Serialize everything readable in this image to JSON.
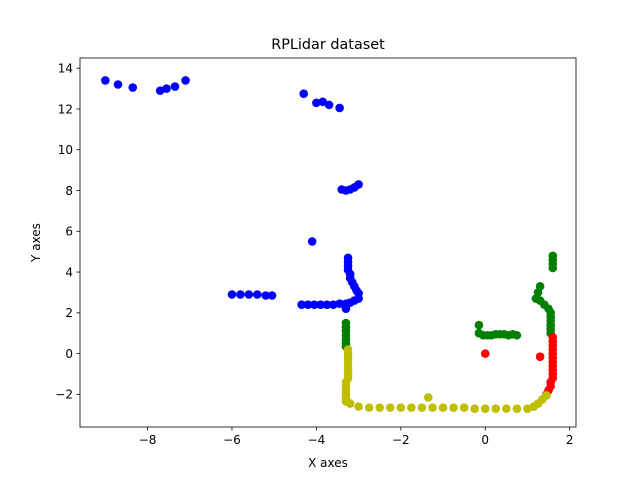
{
  "chart_data": {
    "type": "scatter",
    "title": "RPLidar dataset",
    "xlabel": "X axes",
    "ylabel": "Y axes",
    "xlim": [
      -9.6,
      2.15
    ],
    "ylim": [
      -3.6,
      14.5
    ],
    "xticks": [
      -8,
      -6,
      -4,
      -2,
      0,
      2
    ],
    "yticks": [
      -2,
      0,
      2,
      4,
      6,
      8,
      10,
      12,
      14
    ],
    "grid": false,
    "series": [
      {
        "color": "#0000ff",
        "points": [
          [
            -9.0,
            13.4
          ],
          [
            -8.7,
            13.2
          ],
          [
            -8.35,
            13.05
          ],
          [
            -7.7,
            12.9
          ],
          [
            -7.55,
            13.0
          ],
          [
            -7.35,
            13.1
          ],
          [
            -7.1,
            13.4
          ],
          [
            -4.3,
            12.75
          ],
          [
            -4.0,
            12.3
          ],
          [
            -3.85,
            12.35
          ],
          [
            -3.7,
            12.2
          ],
          [
            -3.45,
            12.05
          ],
          [
            -3.4,
            8.05
          ],
          [
            -3.3,
            8.0
          ],
          [
            -3.2,
            8.05
          ],
          [
            -3.1,
            8.15
          ],
          [
            -3.0,
            8.3
          ],
          [
            -4.1,
            5.5
          ],
          [
            -6.0,
            2.9
          ],
          [
            -5.8,
            2.9
          ],
          [
            -5.6,
            2.9
          ],
          [
            -5.4,
            2.9
          ],
          [
            -5.2,
            2.85
          ],
          [
            -5.05,
            2.85
          ],
          [
            -4.35,
            2.4
          ],
          [
            -4.2,
            2.4
          ],
          [
            -4.05,
            2.4
          ],
          [
            -3.9,
            2.4
          ],
          [
            -3.75,
            2.4
          ],
          [
            -3.6,
            2.4
          ],
          [
            -3.45,
            2.45
          ],
          [
            -3.3,
            2.45
          ],
          [
            -3.2,
            2.5
          ],
          [
            -3.1,
            2.6
          ],
          [
            -3.0,
            2.7
          ],
          [
            -3.25,
            4.7
          ],
          [
            -3.25,
            4.5
          ],
          [
            -3.25,
            4.3
          ],
          [
            -3.25,
            4.1
          ],
          [
            -3.2,
            3.9
          ],
          [
            -3.2,
            3.7
          ],
          [
            -3.15,
            3.5
          ],
          [
            -3.1,
            3.3
          ],
          [
            -3.05,
            3.1
          ],
          [
            -3.0,
            2.95
          ],
          [
            -3.3,
            2.2
          ]
        ]
      },
      {
        "color": "#008000",
        "points": [
          [
            -3.3,
            1.5
          ],
          [
            -3.3,
            1.3
          ],
          [
            -3.3,
            1.1
          ],
          [
            -3.3,
            0.9
          ],
          [
            -3.3,
            0.7
          ],
          [
            -3.3,
            0.5
          ],
          [
            -3.3,
            0.35
          ],
          [
            -0.15,
            1.4
          ],
          [
            -0.15,
            1.0
          ],
          [
            -0.05,
            0.9
          ],
          [
            0.05,
            0.9
          ],
          [
            0.15,
            0.9
          ],
          [
            0.25,
            0.95
          ],
          [
            0.35,
            0.95
          ],
          [
            0.45,
            0.95
          ],
          [
            0.55,
            0.9
          ],
          [
            0.65,
            0.95
          ],
          [
            0.75,
            0.9
          ],
          [
            1.3,
            3.3
          ],
          [
            1.25,
            3.0
          ],
          [
            1.2,
            2.7
          ],
          [
            1.3,
            2.6
          ],
          [
            1.4,
            2.4
          ],
          [
            1.5,
            2.2
          ],
          [
            1.55,
            2.0
          ],
          [
            1.55,
            1.8
          ],
          [
            1.55,
            1.6
          ],
          [
            1.55,
            1.4
          ],
          [
            1.55,
            1.2
          ],
          [
            1.55,
            1.0
          ],
          [
            1.6,
            4.8
          ],
          [
            1.6,
            4.6
          ],
          [
            1.6,
            4.4
          ],
          [
            1.6,
            4.2
          ]
        ]
      },
      {
        "color": "#ff0000",
        "points": [
          [
            0.0,
            0.0
          ],
          [
            1.3,
            -0.15
          ],
          [
            1.6,
            0.8
          ],
          [
            1.6,
            0.6
          ],
          [
            1.6,
            0.4
          ],
          [
            1.6,
            0.2
          ],
          [
            1.6,
            0.0
          ],
          [
            1.6,
            -0.2
          ],
          [
            1.6,
            -0.4
          ],
          [
            1.6,
            -0.6
          ],
          [
            1.6,
            -0.8
          ],
          [
            1.6,
            -1.0
          ],
          [
            1.6,
            -1.2
          ],
          [
            1.55,
            -1.4
          ],
          [
            1.55,
            -1.6
          ],
          [
            1.5,
            -1.8
          ],
          [
            1.45,
            -2.0
          ]
        ]
      },
      {
        "color": "#bfbf00",
        "points": [
          [
            -3.25,
            0.2
          ],
          [
            -3.25,
            0.0
          ],
          [
            -3.25,
            -0.2
          ],
          [
            -3.25,
            -0.4
          ],
          [
            -3.25,
            -0.6
          ],
          [
            -3.25,
            -0.8
          ],
          [
            -3.25,
            -1.0
          ],
          [
            -3.25,
            -1.2
          ],
          [
            -3.3,
            -1.4
          ],
          [
            -3.3,
            -1.6
          ],
          [
            -3.3,
            -1.8
          ],
          [
            -3.3,
            -2.0
          ],
          [
            -3.3,
            -2.2
          ],
          [
            -3.3,
            -2.35
          ],
          [
            -3.2,
            -2.45
          ],
          [
            -3.0,
            -2.6
          ],
          [
            -2.75,
            -2.65
          ],
          [
            -2.5,
            -2.65
          ],
          [
            -2.25,
            -2.65
          ],
          [
            -2.0,
            -2.65
          ],
          [
            -1.75,
            -2.65
          ],
          [
            -1.5,
            -2.65
          ],
          [
            -1.35,
            -2.15
          ],
          [
            -1.25,
            -2.65
          ],
          [
            -1.0,
            -2.65
          ],
          [
            -0.75,
            -2.65
          ],
          [
            -0.5,
            -2.65
          ],
          [
            -0.25,
            -2.7
          ],
          [
            0.0,
            -2.7
          ],
          [
            0.25,
            -2.7
          ],
          [
            0.5,
            -2.7
          ],
          [
            0.75,
            -2.7
          ],
          [
            1.0,
            -2.7
          ],
          [
            1.15,
            -2.6
          ],
          [
            1.25,
            -2.45
          ],
          [
            1.35,
            -2.25
          ],
          [
            1.45,
            -2.05
          ]
        ]
      }
    ]
  }
}
